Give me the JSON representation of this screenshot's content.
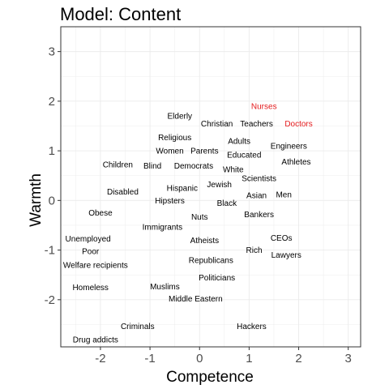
{
  "chart_data": {
    "type": "scatter",
    "title": "Model: Content",
    "xlabel": "Competence",
    "ylabel": "Warmth",
    "xlim": [
      -2.8,
      3.25
    ],
    "ylim": [
      -2.95,
      3.5
    ],
    "xticks": [
      -2,
      -1,
      0,
      1,
      2,
      3
    ],
    "yticks": [
      -2,
      -1,
      0,
      1,
      2,
      3
    ],
    "grid": true,
    "default_color": "#000000",
    "highlight_color": "#e41a1c",
    "points": [
      {
        "label": "Nurses",
        "x": 1.3,
        "y": 1.9,
        "highlight": true
      },
      {
        "label": "Doctors",
        "x": 2.0,
        "y": 1.55,
        "highlight": true
      },
      {
        "label": "Elderly",
        "x": -0.4,
        "y": 1.7
      },
      {
        "label": "Christian",
        "x": 0.35,
        "y": 1.55
      },
      {
        "label": "Teachers",
        "x": 1.15,
        "y": 1.55
      },
      {
        "label": "Religious",
        "x": -0.5,
        "y": 1.27
      },
      {
        "label": "Adults",
        "x": 0.8,
        "y": 1.2
      },
      {
        "label": "Engineers",
        "x": 1.8,
        "y": 1.1
      },
      {
        "label": "Women",
        "x": -0.6,
        "y": 1.0
      },
      {
        "label": "Parents",
        "x": 0.1,
        "y": 1.0
      },
      {
        "label": "Educated",
        "x": 0.9,
        "y": 0.92
      },
      {
        "label": "Athletes",
        "x": 1.95,
        "y": 0.78
      },
      {
        "label": "Children",
        "x": -1.65,
        "y": 0.72
      },
      {
        "label": "Blind",
        "x": -0.95,
        "y": 0.7
      },
      {
        "label": "Democrats",
        "x": -0.12,
        "y": 0.7
      },
      {
        "label": "White",
        "x": 0.68,
        "y": 0.63
      },
      {
        "label": "Scientists",
        "x": 1.2,
        "y": 0.45
      },
      {
        "label": "Jewish",
        "x": 0.4,
        "y": 0.32
      },
      {
        "label": "Hispanic",
        "x": -0.35,
        "y": 0.25
      },
      {
        "label": "Disabled",
        "x": -1.55,
        "y": 0.18
      },
      {
        "label": "Men",
        "x": 1.7,
        "y": 0.12
      },
      {
        "label": "Asian",
        "x": 1.15,
        "y": 0.1
      },
      {
        "label": "Hipsters",
        "x": -0.6,
        "y": 0.0
      },
      {
        "label": "Black",
        "x": 0.55,
        "y": -0.05
      },
      {
        "label": "Obese",
        "x": -2.0,
        "y": -0.25
      },
      {
        "label": "Bankers",
        "x": 1.2,
        "y": -0.28
      },
      {
        "label": "Nuts",
        "x": 0.0,
        "y": -0.33
      },
      {
        "label": "Immigrants",
        "x": -0.75,
        "y": -0.53
      },
      {
        "label": "Unemployed",
        "x": -2.25,
        "y": -0.77
      },
      {
        "label": "CEOs",
        "x": 1.65,
        "y": -0.75
      },
      {
        "label": "Atheists",
        "x": 0.1,
        "y": -0.8
      },
      {
        "label": "Poor",
        "x": -2.2,
        "y": -1.02
      },
      {
        "label": "Rich",
        "x": 1.1,
        "y": -1.0
      },
      {
        "label": "Lawyers",
        "x": 1.75,
        "y": -1.1
      },
      {
        "label": "Republicans",
        "x": 0.23,
        "y": -1.2
      },
      {
        "label": "Welfare recipients",
        "x": -2.1,
        "y": -1.3
      },
      {
        "label": "Politicians",
        "x": 0.35,
        "y": -1.55
      },
      {
        "label": "Homeless",
        "x": -2.2,
        "y": -1.75
      },
      {
        "label": "Muslims",
        "x": -0.7,
        "y": -1.73
      },
      {
        "label": "Middle Eastern",
        "x": -0.08,
        "y": -1.98
      },
      {
        "label": "Criminals",
        "x": -1.25,
        "y": -2.53
      },
      {
        "label": "Hackers",
        "x": 1.05,
        "y": -2.53
      },
      {
        "label": "Drug addicts",
        "x": -2.1,
        "y": -2.8
      }
    ]
  }
}
